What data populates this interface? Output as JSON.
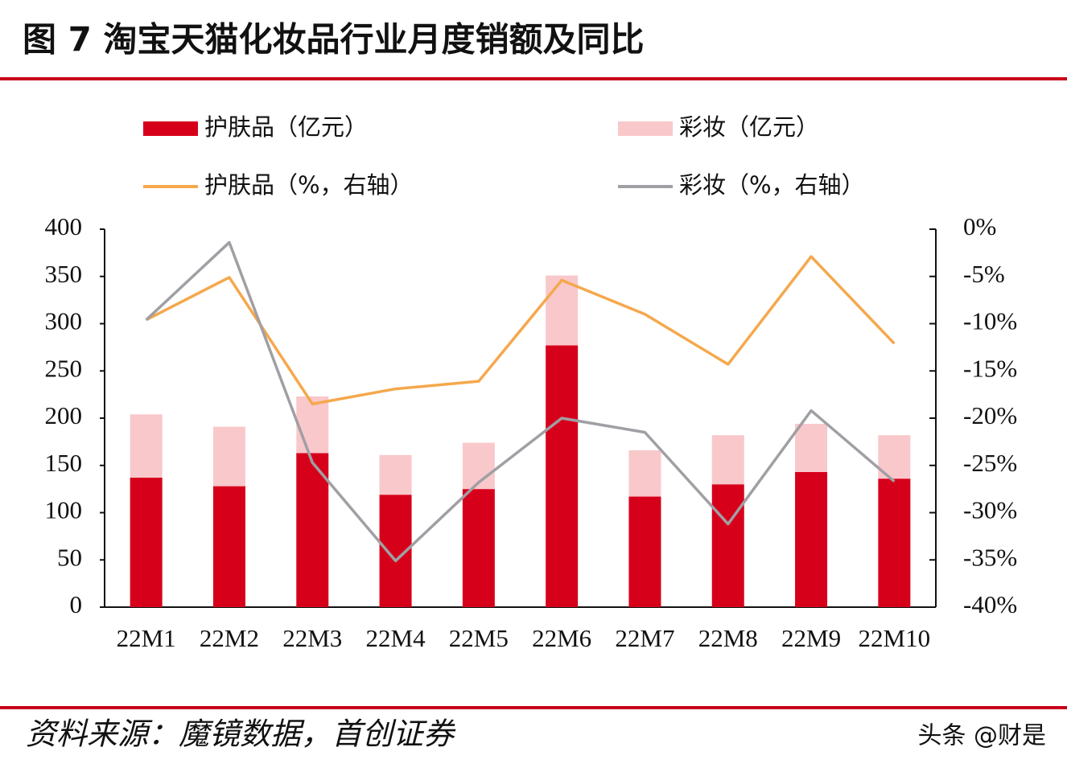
{
  "chart_data": {
    "type": "combo",
    "title": "图 7 淘宝天猫化妆品行业月度销额及同比",
    "stacked": true,
    "categories": [
      "22M1",
      "22M2",
      "22M3",
      "22M4",
      "22M5",
      "22M6",
      "22M7",
      "22M8",
      "22M9",
      "22M10"
    ],
    "series": [
      {
        "name": "护肤品（亿元）",
        "type": "bar",
        "color": "#d7001a",
        "values": [
          137,
          128,
          163,
          119,
          125,
          277,
          117,
          130,
          143,
          136
        ]
      },
      {
        "name": "彩妆（亿元）",
        "type": "bar",
        "color": "#f9c8cb",
        "values": [
          67,
          63,
          60,
          42,
          49,
          74,
          49,
          52,
          51,
          46
        ]
      },
      {
        "name": "护肤品（%，右轴）",
        "type": "line",
        "axis": "y2",
        "color": "#f5a84c",
        "values": [
          -9.6,
          -5.1,
          -18.5,
          -16.9,
          -16.1,
          -5.4,
          -9.0,
          -14.3,
          -2.9,
          -12.1
        ]
      },
      {
        "name": "彩妆（%，右轴）",
        "type": "line",
        "axis": "y2",
        "color": "#a09fa4",
        "values": [
          -9.6,
          -1.4,
          -24.7,
          -35.1,
          -26.8,
          -20.0,
          -21.5,
          -31.2,
          -19.2,
          -26.7
        ]
      }
    ],
    "ylim": [
      0,
      400
    ],
    "yticks": [
      0,
      50,
      100,
      150,
      200,
      250,
      300,
      350,
      400
    ],
    "y2lim": [
      -40,
      0
    ],
    "y2ticks": [
      {
        "value": -40,
        "label": "-40%"
      },
      {
        "value": -35,
        "label": "-35%"
      },
      {
        "value": -30,
        "label": "-30%"
      },
      {
        "value": -25,
        "label": "-25%"
      },
      {
        "value": -20,
        "label": "-20%"
      },
      {
        "value": -15,
        "label": "-15%"
      },
      {
        "value": -10,
        "label": "-10%"
      },
      {
        "value": -5,
        "label": "-5%"
      },
      {
        "value": 0,
        "label": "0%"
      }
    ],
    "grid": false
  },
  "source": "资料来源：魔镜数据，首创证券",
  "watermark": "头条 @财是"
}
